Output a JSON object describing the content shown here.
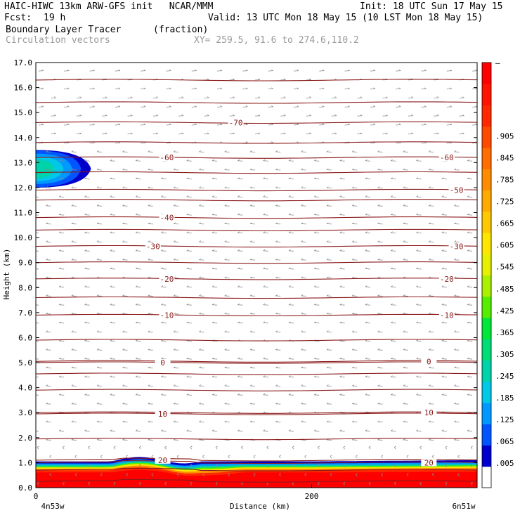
{
  "header": {
    "line1_left": "HAIC-HIWC 13km ARW-GFS init   NCAR/MMM",
    "line1_right": "Init: 18 UTC Sun 17 May 15",
    "fcst_label": "Fcst:",
    "fcst_value": "19 h",
    "valid": "Valid: 13 UTC Mon 18 May 15 (10 LST Mon 18 May 15)",
    "field": "Boundary Layer Tracer",
    "units": "(fraction)",
    "overlay": "Circulation vectors",
    "xy": "XY= 259.5, 91.6 to 274.6,110.2"
  },
  "colors": {
    "isotherm": "#8b1a1a",
    "vector": "#8a8a8a",
    "colorbar": [
      "#ffffff",
      "#0000cd",
      "#0055ff",
      "#0099ff",
      "#00c8e6",
      "#00d2aa",
      "#00dd77",
      "#00e639",
      "#55ee00",
      "#aaf000",
      "#e6f000",
      "#ffe600",
      "#ffc800",
      "#ffaa00",
      "#ff8c00",
      "#ff6e00",
      "#ff4b00",
      "#ff2800",
      "#ff1400",
      "#ff0000"
    ]
  },
  "chart_data": {
    "type": "heatmap",
    "title": "Boundary Layer Tracer",
    "units": "(fraction)",
    "xlabel": "Distance (km)",
    "ylabel": "Height (km)",
    "xlim": [
      0,
      320
    ],
    "ylim": [
      0,
      17
    ],
    "x_ticks": [
      0,
      200
    ],
    "x_ticklabels": [
      "0",
      "200"
    ],
    "x_endpoint_labels": [
      "4n53w",
      "6n51w"
    ],
    "y_ticks": [
      0.0,
      1.0,
      2.0,
      3.0,
      4.0,
      5.0,
      6.0,
      7.0,
      8.0,
      9.0,
      10.0,
      11.0,
      12.0,
      13.0,
      14.0,
      15.0,
      16.0,
      17.0
    ],
    "y_ticklabels": [
      "0.0",
      "1.0",
      "2.0",
      "3.0",
      "4.0",
      "5.0",
      "6.0",
      "7.0",
      "8.0",
      "9.0",
      "10.0",
      "11.0",
      "12.0",
      "13.0",
      "14.0",
      "15.0",
      "16.0",
      "17.0"
    ],
    "colorbar_labels": [
      ".005",
      ".065",
      ".125",
      ".185",
      ".245",
      ".305",
      ".365",
      ".425",
      ".485",
      ".545",
      ".605",
      ".665",
      ".725",
      ".785",
      ".845",
      ".905",
      "—"
    ],
    "isotherms": [
      {
        "label": "-70",
        "height": 14.6,
        "label_x": 145
      },
      {
        "label": "-60",
        "height": 13.2,
        "label_x": 95
      },
      {
        "label": "-60",
        "height": 13.2,
        "label_x": 298
      },
      {
        "label": "-50",
        "height": 11.9,
        "label_x": 305
      },
      {
        "label": "-40",
        "height": 10.8,
        "label_x": 95
      },
      {
        "label": "-30",
        "height": 9.65,
        "label_x": 85
      },
      {
        "label": "-30",
        "height": 9.65,
        "label_x": 305
      },
      {
        "label": "-20",
        "height": 8.35,
        "label_x": 95
      },
      {
        "label": "-20",
        "height": 8.35,
        "label_x": 298
      },
      {
        "label": "-10",
        "height": 6.9,
        "label_x": 95
      },
      {
        "label": "-10",
        "height": 6.9,
        "label_x": 298
      },
      {
        "label": "0",
        "height": 5.0,
        "label_x": 92
      },
      {
        "label": "0",
        "height": 5.05,
        "label_x": 285
      },
      {
        "label": "10",
        "height": 2.95,
        "label_x": 92
      },
      {
        "label": "10",
        "height": 3.0,
        "label_x": 285
      },
      {
        "label": "20",
        "height": 1.1,
        "label_x": 92
      },
      {
        "label": "20",
        "height": 1.0,
        "label_x": 285
      }
    ],
    "extra_isotherm_heights": [
      0.25,
      0.7,
      1.95,
      3.9,
      4.55,
      5.9,
      7.6,
      9.0,
      10.3,
      11.5,
      12.6,
      13.8,
      15.4,
      16.3
    ],
    "tracer_regions": [
      {
        "name": "upper plume",
        "x_range": [
          0,
          40
        ],
        "height_range": [
          12.0,
          13.5
        ],
        "max_fraction": 0.3
      },
      {
        "name": "boundary layer",
        "x_range": [
          0,
          320
        ],
        "height_range": [
          0.0,
          1.3
        ],
        "max_fraction": 1.0
      }
    ]
  }
}
